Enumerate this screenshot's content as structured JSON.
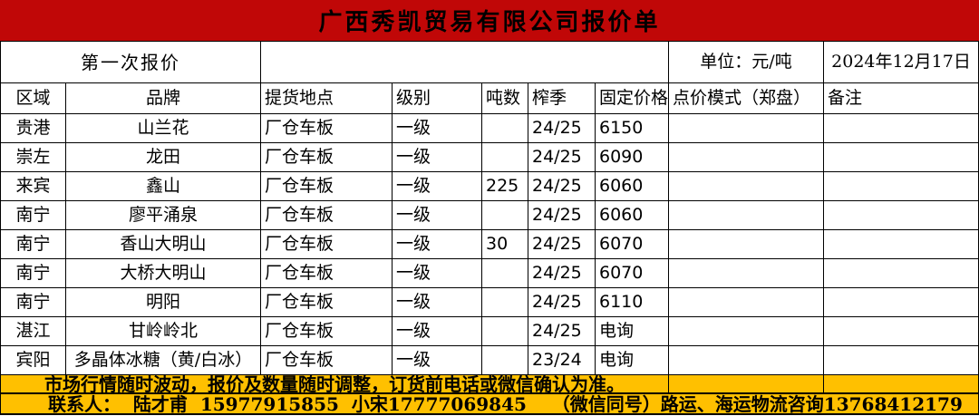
{
  "title": "广西秀凯贸易有限公司报价单",
  "meta": {
    "first_quote_label": "第一次报价",
    "unit_label": "单位：元/吨",
    "date": "2024年12月17日"
  },
  "table": {
    "headers": [
      "区域",
      "品牌",
      "提货地点",
      "级别",
      "吨数",
      "榨季",
      "固定价格",
      "点价模式（郑盘）",
      "备注"
    ],
    "rows": [
      {
        "region": "贵港",
        "brand": "山兰花",
        "pickup": "厂仓车板",
        "grade": "一级",
        "tons": "",
        "season": "24/25",
        "price": "6150",
        "point_mode": "",
        "note": ""
      },
      {
        "region": "崇左",
        "brand": "龙田",
        "pickup": "厂仓车板",
        "grade": "一级",
        "tons": "",
        "season": "24/25",
        "price": "6090",
        "point_mode": "",
        "note": ""
      },
      {
        "region": "来宾",
        "brand": "鑫山",
        "pickup": "厂仓车板",
        "grade": "一级",
        "tons": "225",
        "season": "24/25",
        "price": "6060",
        "point_mode": "",
        "note": ""
      },
      {
        "region": "南宁",
        "brand": "廖平涌泉",
        "pickup": "厂仓车板",
        "grade": "一级",
        "tons": "",
        "season": "24/25",
        "price": "6060",
        "point_mode": "",
        "note": ""
      },
      {
        "region": "南宁",
        "brand": "香山大明山",
        "pickup": "厂仓车板",
        "grade": "一级",
        "tons": "30",
        "season": "24/25",
        "price": "6070",
        "point_mode": "",
        "note": ""
      },
      {
        "region": "南宁",
        "brand": "大桥大明山",
        "pickup": "厂仓车板",
        "grade": "一级",
        "tons": "",
        "season": "24/25",
        "price": "6070",
        "point_mode": "",
        "note": ""
      },
      {
        "region": "南宁",
        "brand": "明阳",
        "pickup": "厂仓车板",
        "grade": "一级",
        "tons": "",
        "season": "24/25",
        "price": "6110",
        "point_mode": "",
        "note": ""
      },
      {
        "region": "湛江",
        "brand": "甘岭岭北",
        "pickup": "厂仓车板",
        "grade": "一级",
        "tons": "",
        "season": "24/25",
        "price": "电询",
        "point_mode": "",
        "note": ""
      },
      {
        "region": "宾阳",
        "brand": "多晶体冰糖（黄/白冰）",
        "pickup": "厂仓车板",
        "grade": "一级",
        "tons": "",
        "season": "23/24",
        "price": "电询",
        "point_mode": "",
        "note": ""
      }
    ]
  },
  "footer": {
    "notice": "市场行情随时波动，报价及数量随时调整，订货前电话或微信确认为准。",
    "contacts": "联系人：  陆才甫  15977915855  小宋17777069845    （微信同号）路运、海运物流咨询13768412179"
  },
  "colors": {
    "header_red": "#c00707",
    "footer_orange": "#ffc000"
  }
}
